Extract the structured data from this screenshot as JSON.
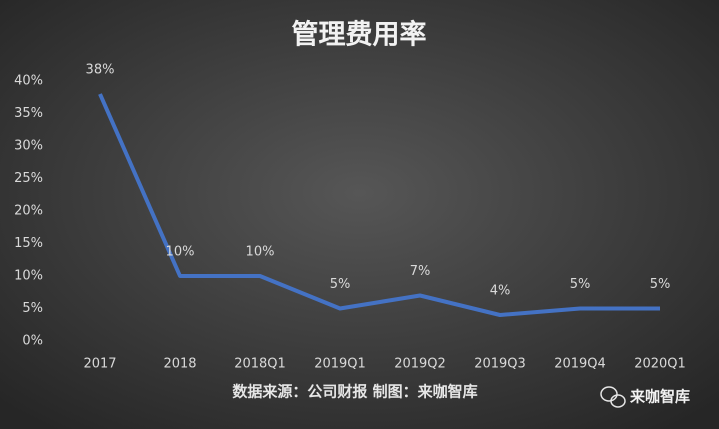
{
  "chart_data": {
    "type": "line",
    "title": "管理费用率",
    "categories": [
      "2017",
      "2018",
      "2018Q1",
      "2019Q1",
      "2019Q2",
      "2019Q3",
      "2019Q4",
      "2020Q1"
    ],
    "values": [
      38,
      10,
      10,
      5,
      7,
      4,
      5,
      5
    ],
    "value_labels": [
      "38%",
      "10%",
      "10%",
      "5%",
      "7%",
      "4%",
      "5%",
      "5%"
    ],
    "color": "#4472c4",
    "ylim": [
      0,
      40
    ],
    "yticks": [
      {
        "value": 0,
        "label": "0%"
      },
      {
        "value": 5,
        "label": "5%"
      },
      {
        "value": 10,
        "label": "10%"
      },
      {
        "value": 15,
        "label": "15%"
      },
      {
        "value": 20,
        "label": "20%"
      },
      {
        "value": 25,
        "label": "25%"
      },
      {
        "value": 30,
        "label": "30%"
      },
      {
        "value": 35,
        "label": "35%"
      },
      {
        "value": 40,
        "label": "40%"
      }
    ],
    "grid": false,
    "source": "数据来源：公司财报 制图：来咖智库",
    "watermark": "来咖智库"
  }
}
